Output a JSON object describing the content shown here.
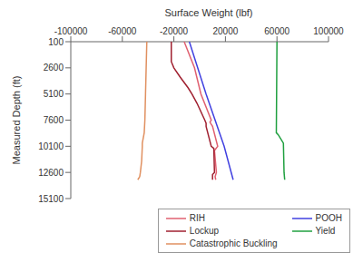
{
  "chart_data": {
    "type": "line",
    "x_label": "Surface Weight (lbf)",
    "y_label": "Measured Depth (ft)",
    "xlim": [
      -100000,
      100000
    ],
    "xticks": [
      -100000,
      -60000,
      -20000,
      20000,
      60000,
      100000
    ],
    "ylim": [
      100,
      15100
    ],
    "yticks": [
      100,
      2600,
      5100,
      7600,
      10100,
      12600,
      15100
    ],
    "grid": false,
    "legend": "lower right",
    "series": [
      {
        "name": "RIH",
        "color": "#e06070",
        "x": [
          -12000,
          -4000,
          1000,
          9000,
          8000,
          10000,
          14000,
          11500,
          13000,
          12000,
          12500
        ],
        "y": [
          100,
          2600,
          5100,
          7600,
          7800,
          8200,
          10100,
          10500,
          12600,
          13000,
          13300
        ]
      },
      {
        "name": "POOH",
        "color": "#4040e0",
        "x": [
          -8000,
          5000,
          19000,
          26000
        ],
        "y": [
          100,
          5100,
          10100,
          13300
        ]
      },
      {
        "name": "Lockup",
        "color": "#a02030",
        "x": [
          -22000,
          -22000,
          -20000,
          -15000,
          -9000,
          -6000,
          -2000,
          4000,
          5000,
          5000,
          9000,
          11000,
          11500,
          10000,
          10000
        ],
        "y": [
          100,
          2000,
          2600,
          3500,
          4500,
          5100,
          6000,
          7600,
          7900,
          8200,
          10100,
          10300,
          12600,
          12800,
          13300
        ]
      },
      {
        "name": "Yield",
        "color": "#20a040",
        "x": [
          60000,
          59500,
          61000,
          65000,
          65500,
          66000
        ],
        "y": [
          100,
          8800,
          9000,
          9800,
          12600,
          13300
        ]
      },
      {
        "name": "Catastrophic Buckling",
        "color": "#e09060",
        "x": [
          -41000,
          -41500,
          -42000,
          -42500,
          -43000,
          -44500,
          -44500,
          -45000,
          -46000,
          -46500,
          -48000
        ],
        "y": [
          100,
          2600,
          5100,
          7600,
          8800,
          9800,
          10100,
          11500,
          12600,
          13000,
          13300
        ]
      }
    ]
  }
}
